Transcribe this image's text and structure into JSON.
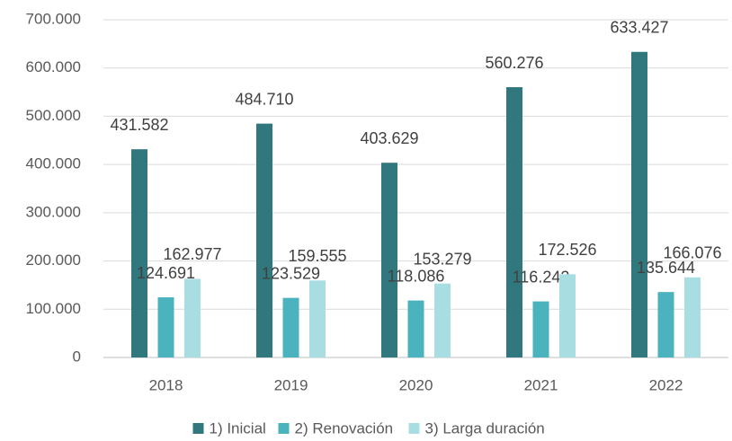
{
  "chart_data": {
    "type": "bar",
    "categories": [
      "2018",
      "2019",
      "2020",
      "2021",
      "2022"
    ],
    "series": [
      {
        "name": "1) Inicial",
        "color": "#31787e",
        "values": [
          431582,
          484710,
          403629,
          560276,
          633427
        ],
        "value_labels": [
          "431.582",
          "484.710",
          "403.629",
          "560.276",
          "633.427"
        ]
      },
      {
        "name": "2) Renovación",
        "color": "#4bb3bd",
        "values": [
          124691,
          123529,
          118086,
          116242,
          135644
        ],
        "value_labels": [
          "124.691",
          "123.529",
          "118.086",
          "116.242",
          "135.644"
        ]
      },
      {
        "name": "3) Larga duración",
        "color": "#a8dde2",
        "values": [
          162977,
          159555,
          153279,
          172526,
          166076
        ],
        "value_labels": [
          "162.977",
          "159.555",
          "153.279",
          "172.526",
          "166.076"
        ]
      }
    ],
    "ylim": [
      0,
      700000
    ],
    "yticks": [
      0,
      {
        "value": 100000,
        "label": "100.000"
      },
      {
        "value": 200000,
        "label": "200.000"
      },
      {
        "value": 300000,
        "label": "300.000"
      },
      {
        "value": 400000,
        "label": "400.000"
      },
      {
        "value": 500000,
        "label": "500.000"
      },
      {
        "value": 600000,
        "label": "600.000"
      },
      {
        "value": 700000,
        "label": "700.000"
      }
    ],
    "grid": true,
    "legend": "bottom"
  }
}
